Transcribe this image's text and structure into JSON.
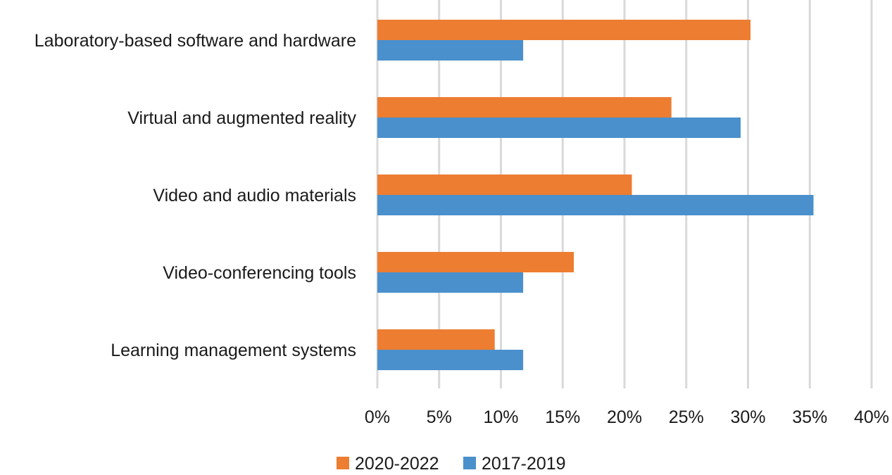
{
  "chart_data": {
    "type": "bar",
    "orientation": "horizontal",
    "categories": [
      "Laboratory-based software and hardware",
      "Virtual and augmented reality",
      "Video and audio materials",
      "Video-conferencing tools",
      "Learning management systems"
    ],
    "series": [
      {
        "name": "2020-2022",
        "color": "#ED7D31",
        "values": [
          30.2,
          23.8,
          20.6,
          15.9,
          9.5
        ]
      },
      {
        "name": "2017-2019",
        "color": "#4A90CC",
        "values": [
          11.8,
          29.4,
          35.3,
          11.8,
          11.8
        ]
      }
    ],
    "xlim": [
      0,
      40
    ],
    "xticks": [
      0,
      5,
      10,
      15,
      20,
      25,
      30,
      35,
      40
    ],
    "tick_format": "percent",
    "grid": "vertical",
    "legend_position": "bottom",
    "title": "",
    "xlabel": "",
    "ylabel": ""
  }
}
